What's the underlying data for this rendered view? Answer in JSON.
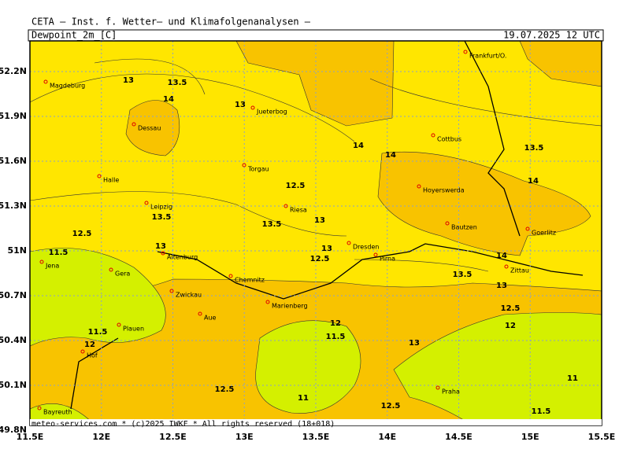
{
  "header": "CETA — Inst. f. Wetter— und Klimafolgenanalysen —",
  "map": {
    "title": "Dewpoint_2m_[C]",
    "time": "19.07.2025 12 UTC",
    "lat_labels": [
      "52.2N",
      "51.9N",
      "51.6N",
      "51.3N",
      "51N",
      "50.7N",
      "50.4N",
      "50.1N",
      "49.8N"
    ],
    "lon_labels": [
      "11.5E",
      "12E",
      "12.5E",
      "13E",
      "13.5E",
      "14E",
      "14.5E",
      "15E",
      "15.5E"
    ],
    "cities": [
      "Magdeburg",
      "Dessau",
      "Jueterbog",
      "Halle",
      "Torgau",
      "Leipzig",
      "Riesa",
      "Altenburg",
      "Jena",
      "Gera",
      "Dresden",
      "Pirna",
      "Chemnitz",
      "Zwickau",
      "Aue",
      "Marienberg",
      "Plauen",
      "Hof",
      "Bayreuth",
      "Cottbus",
      "Hoyerswerda",
      "Bautzen",
      "Goerlitz",
      "Zittau",
      "Praha",
      "Frankfurt/O."
    ],
    "contour_labels": [
      "13",
      "13.5",
      "14",
      "13",
      "14",
      "14",
      "13.5",
      "14",
      "12.5",
      "13.5",
      "13",
      "13.5",
      "12.5",
      "13",
      "11.5",
      "13",
      "12.5",
      "14",
      "13.5",
      "13",
      "12.5",
      "12",
      "12",
      "11.5",
      "11.5",
      "12",
      "13",
      "11",
      "12.5",
      "11",
      "12.5",
      "11.5"
    ],
    "footer": "meteo-services.com * (c)2025 IWKF * All rights reserved (18+018)"
  }
}
